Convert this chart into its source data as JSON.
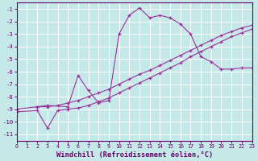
{
  "bg_color": "#c5e8e8",
  "grid_color": "#b0d8d8",
  "line_color": "#993399",
  "xlim": [
    0,
    23
  ],
  "ylim": [
    -11.5,
    -0.5
  ],
  "xticks": [
    0,
    1,
    2,
    3,
    4,
    5,
    6,
    7,
    8,
    9,
    10,
    11,
    12,
    13,
    14,
    15,
    16,
    17,
    18,
    19,
    20,
    21,
    22,
    23
  ],
  "yticks": [
    -1,
    -2,
    -3,
    -4,
    -5,
    -6,
    -7,
    -8,
    -9,
    -10,
    -11
  ],
  "xlabel": "Windchill (Refroidissement éolien,°C)",
  "line1_x": [
    0,
    2,
    3,
    4,
    5,
    6,
    7,
    8,
    9,
    10,
    11,
    12,
    13,
    14,
    15,
    16,
    17,
    18,
    19,
    20,
    21,
    22,
    23
  ],
  "line1_y": [
    -9.0,
    -8.8,
    -8.8,
    -8.7,
    -8.5,
    -8.3,
    -8.0,
    -7.7,
    -7.4,
    -7.0,
    -6.6,
    -6.2,
    -5.9,
    -5.5,
    -5.1,
    -4.7,
    -4.3,
    -3.9,
    -3.5,
    -3.1,
    -2.8,
    -2.5,
    -2.3
  ],
  "line2_x": [
    0,
    2,
    3,
    4,
    5,
    6,
    7,
    8,
    9,
    10,
    11,
    12,
    13,
    14,
    15,
    16,
    17,
    18,
    19,
    20,
    21,
    22,
    23
  ],
  "line2_y": [
    -9.2,
    -9.1,
    -10.5,
    -9.1,
    -9.0,
    -8.9,
    -8.7,
    -8.4,
    -8.1,
    -7.7,
    -7.3,
    -6.9,
    -6.5,
    -6.1,
    -5.7,
    -5.3,
    -4.8,
    -4.4,
    -4.0,
    -3.6,
    -3.2,
    -2.9,
    -2.6
  ],
  "line3_x": [
    2,
    3,
    5,
    6,
    7,
    8,
    9,
    10,
    11,
    12,
    13,
    14,
    15,
    16,
    17,
    18,
    19,
    20,
    21,
    22,
    23
  ],
  "line3_y": [
    -8.8,
    -8.7,
    -8.8,
    -6.3,
    -7.5,
    -8.5,
    -8.3,
    -3.0,
    -1.5,
    -0.9,
    -1.7,
    -1.5,
    -1.7,
    -2.2,
    -3.0,
    -4.8,
    -5.2,
    -5.8,
    -5.8,
    -5.7,
    -5.7
  ]
}
